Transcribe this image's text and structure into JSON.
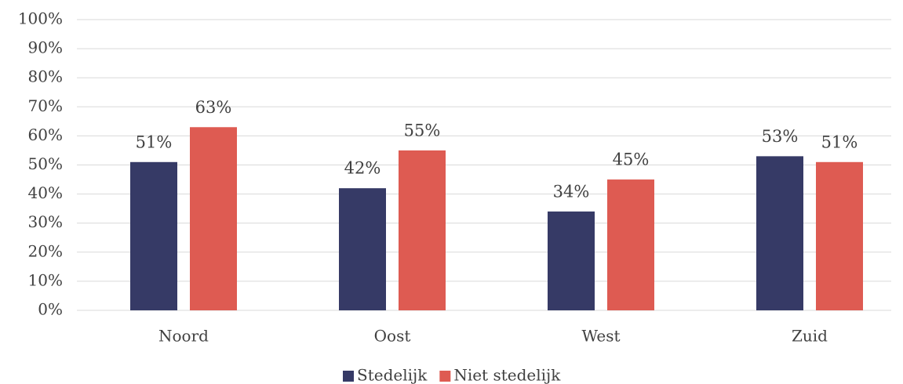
{
  "chart_data": {
    "type": "bar",
    "categories": [
      "Noord",
      "Oost",
      "West",
      "Zuid"
    ],
    "series": [
      {
        "name": "Stedelijk",
        "color": "#363a66",
        "values": [
          51,
          42,
          34,
          53
        ],
        "value_labels": [
          "51%",
          "42%",
          "34%",
          "53%"
        ]
      },
      {
        "name": "Niet stedelijk",
        "color": "#de5b52",
        "values": [
          63,
          55,
          45,
          51
        ],
        "value_labels": [
          "63%",
          "55%",
          "45%",
          "51%"
        ]
      }
    ],
    "ylim": [
      0,
      100
    ],
    "yticks": [
      {
        "value": 0,
        "label": "0%"
      },
      {
        "value": 10,
        "label": "10%"
      },
      {
        "value": 20,
        "label": "20%"
      },
      {
        "value": 30,
        "label": "30%"
      },
      {
        "value": 40,
        "label": "40%"
      },
      {
        "value": 50,
        "label": "50%"
      },
      {
        "value": 60,
        "label": "60%"
      },
      {
        "value": 70,
        "label": "70%"
      },
      {
        "value": 80,
        "label": "80%"
      },
      {
        "value": 90,
        "label": "90%"
      },
      {
        "value": 100,
        "label": "100%"
      }
    ],
    "grid": true,
    "legend": "bottom"
  }
}
